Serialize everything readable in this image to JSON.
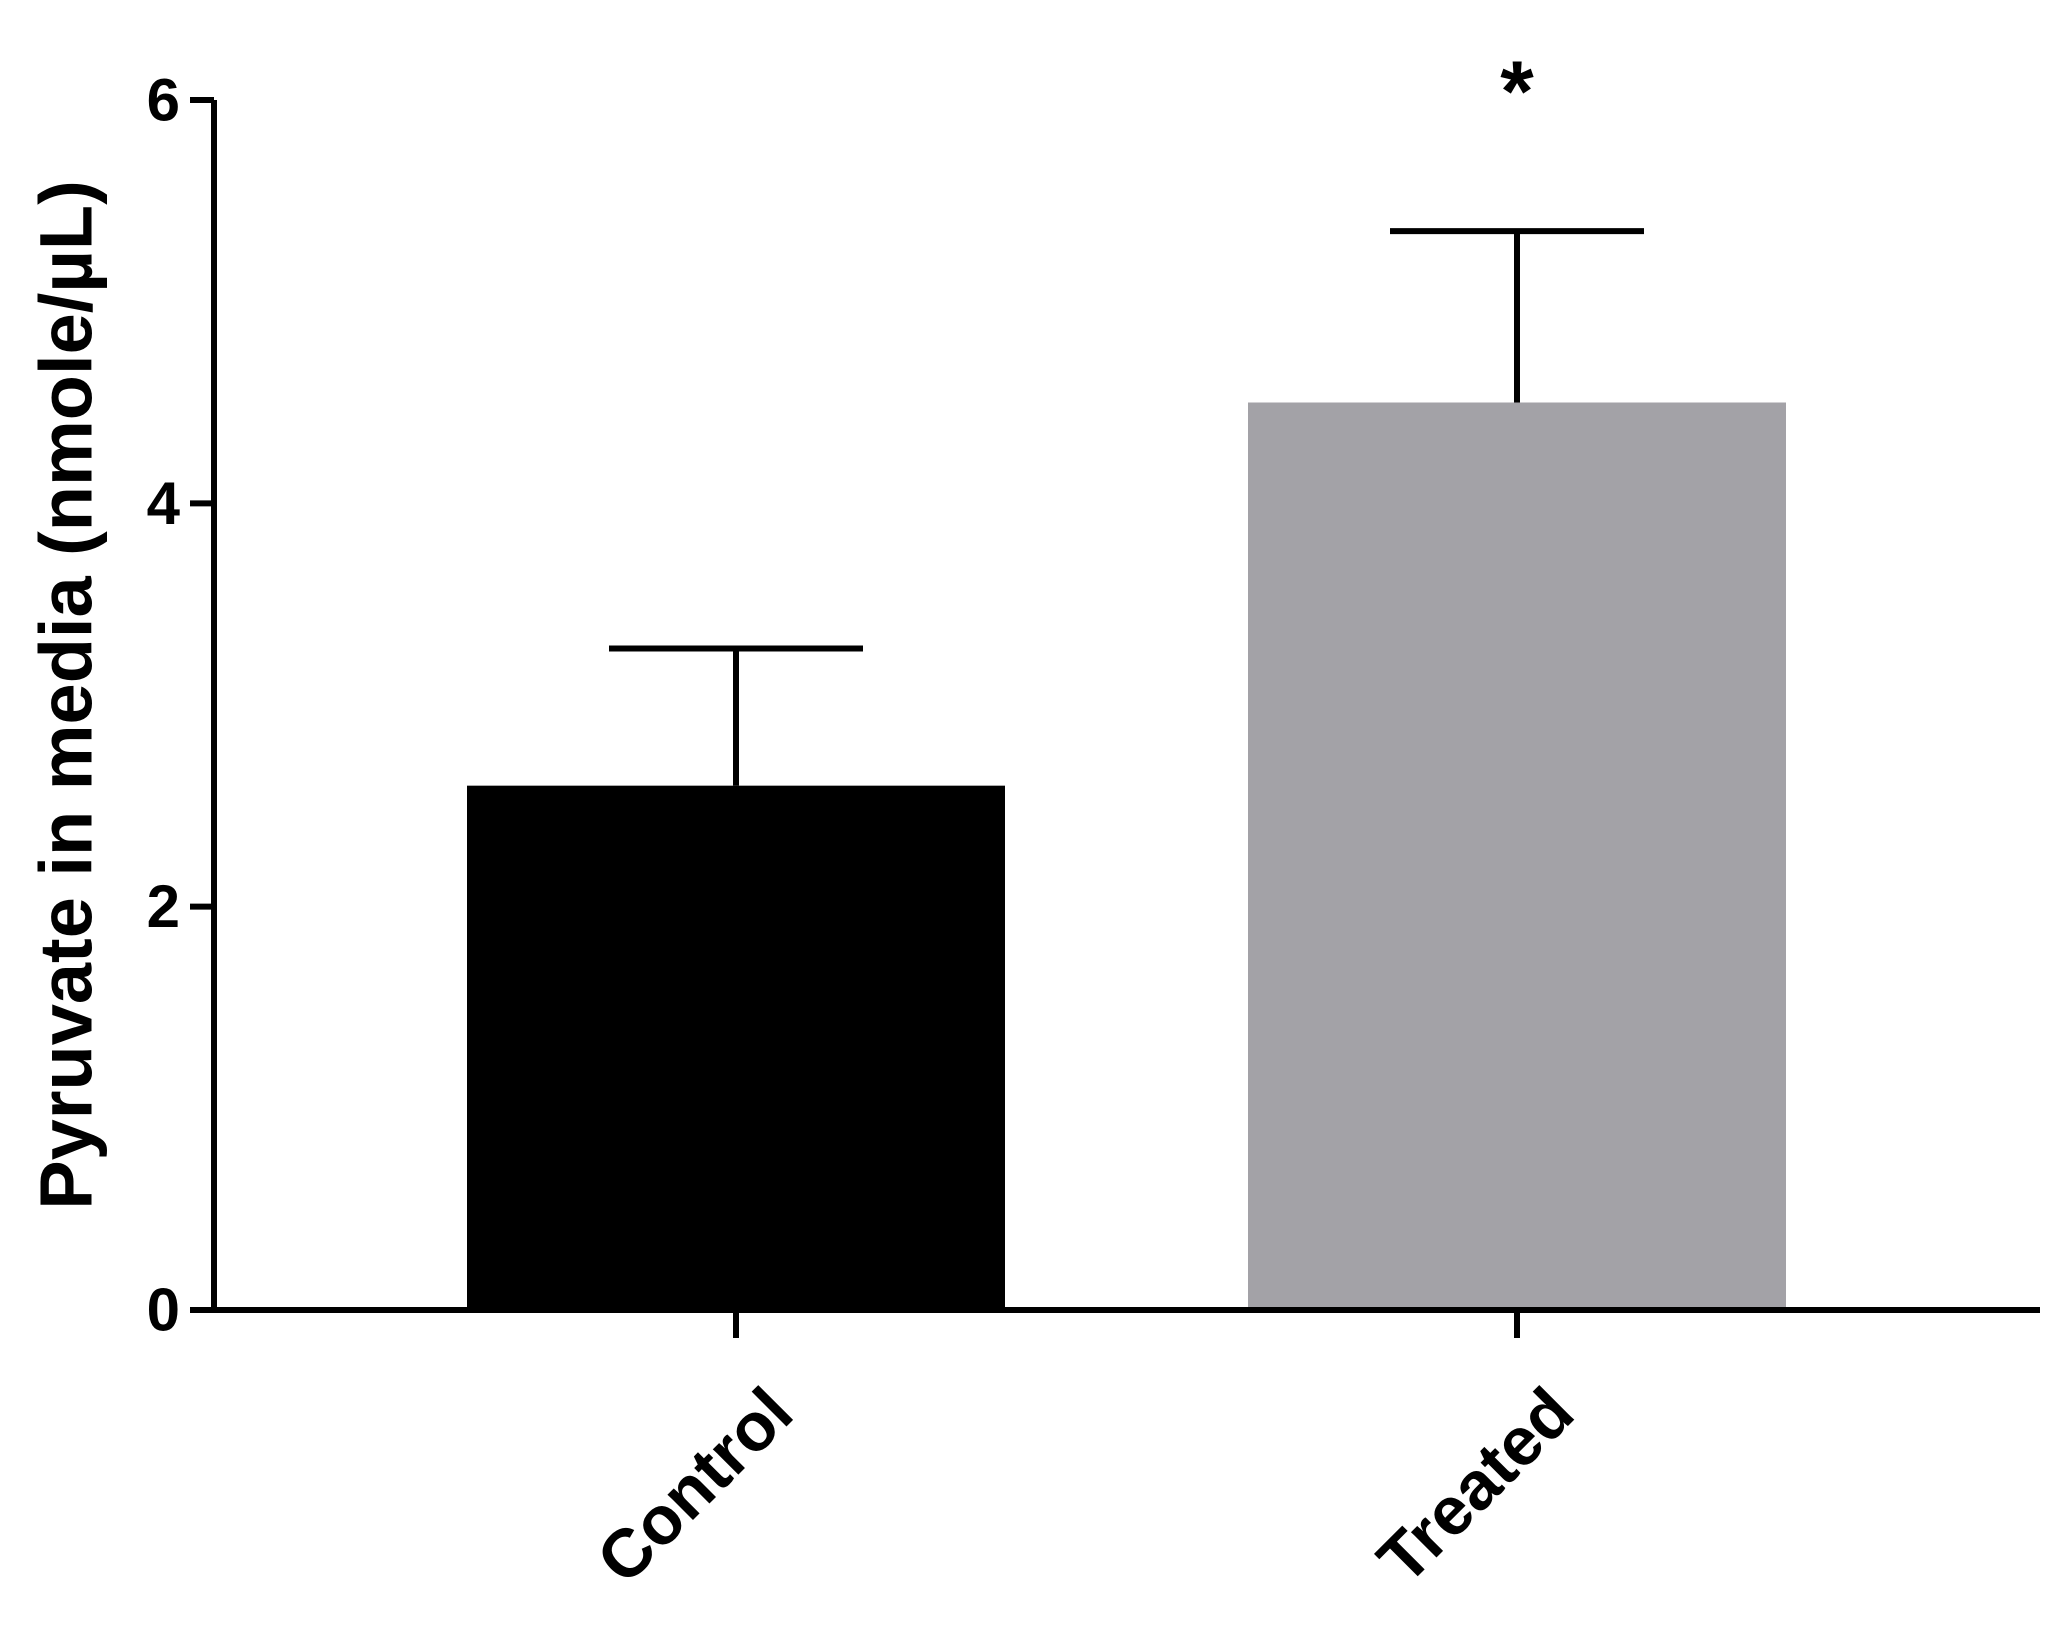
{
  "chart_data": {
    "type": "bar",
    "title": "",
    "xlabel": "",
    "ylabel": "Pyruvate in media (nmole/µL)",
    "ylim": [
      0,
      6
    ],
    "yticks": [
      0,
      2,
      4,
      6
    ],
    "categories": [
      "Control",
      "Treated"
    ],
    "values": [
      2.6,
      4.5
    ],
    "errors": [
      0.68,
      0.85
    ],
    "colors": [
      "#000000",
      "#a3a2a7"
    ],
    "annotations": [
      "",
      "*"
    ],
    "grid": false,
    "legend": "none"
  }
}
